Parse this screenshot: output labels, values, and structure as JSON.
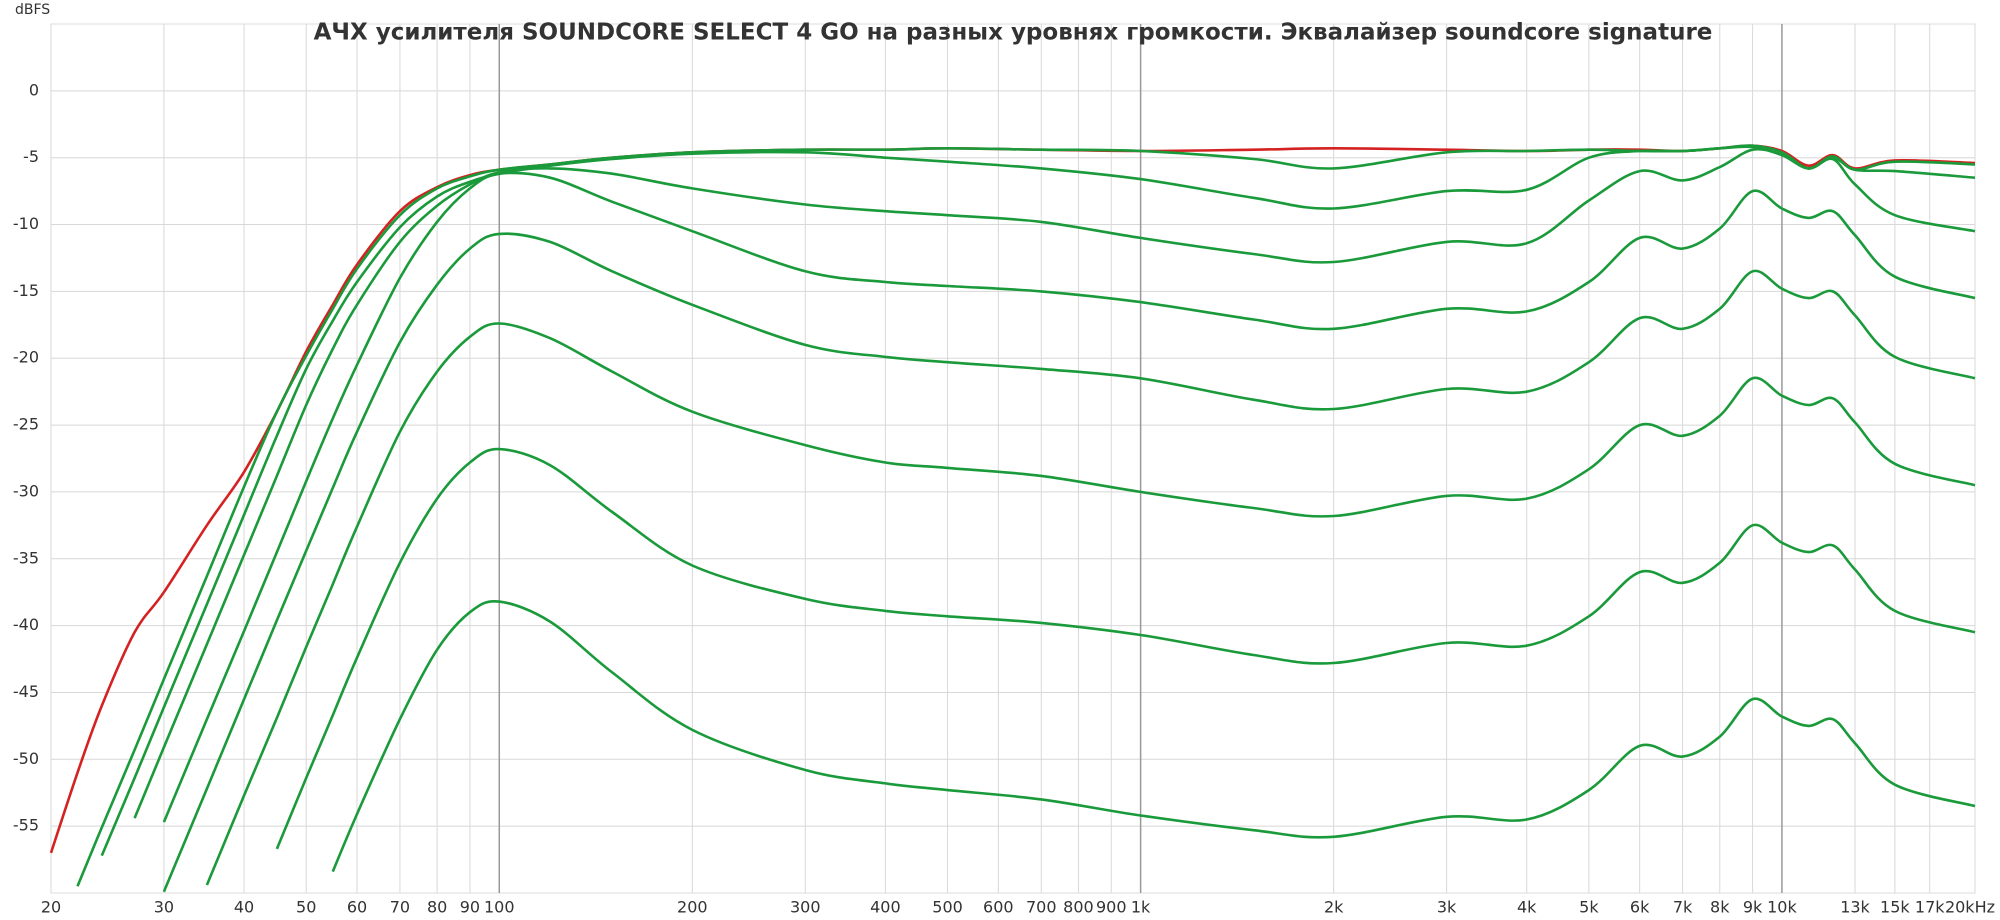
{
  "chart_data": {
    "type": "line",
    "title": "АЧХ усилителя SOUNDCORE SELECT 4 GO на разных уровнях громкости. Эквалайзер soundcore signature",
    "y_label": "dBFS",
    "xscale": "log",
    "grid": true,
    "xlim": [
      20,
      20000
    ],
    "ylim": [
      -60,
      5
    ],
    "xticks": [
      20,
      30,
      40,
      50,
      60,
      70,
      80,
      90,
      100,
      200,
      300,
      400,
      500,
      600,
      700,
      800,
      900,
      {
        "value": 1000,
        "label": "1k"
      },
      {
        "value": 2000,
        "label": "2k"
      },
      {
        "value": 3000,
        "label": "3k"
      },
      {
        "value": 4000,
        "label": "4k"
      },
      {
        "value": 5000,
        "label": "5k"
      },
      {
        "value": 6000,
        "label": "6k"
      },
      {
        "value": 7000,
        "label": "7k"
      },
      {
        "value": 8000,
        "label": "8k"
      },
      {
        "value": 9000,
        "label": "9k"
      },
      {
        "value": 10000,
        "label": "10k"
      },
      {
        "value": 13000,
        "label": "13k"
      },
      {
        "value": 15000,
        "label": "15k"
      },
      {
        "value": 17000,
        "label": "17k"
      },
      {
        "value": 20000,
        "label": "20kHz"
      }
    ],
    "yticks": [
      0,
      -5,
      -10,
      -15,
      -20,
      -25,
      -30,
      -35,
      -40,
      -45,
      -50,
      -55
    ],
    "x": [
      20,
      22,
      24,
      27,
      30,
      35,
      40,
      45,
      50,
      55,
      60,
      70,
      80,
      90,
      100,
      120,
      150,
      200,
      300,
      400,
      500,
      700,
      1000,
      1500,
      2000,
      3000,
      4000,
      5000,
      6000,
      7000,
      8000,
      9000,
      10000,
      11000,
      12000,
      13000,
      15000,
      20000
    ],
    "series": [
      {
        "color": "#d42222",
        "values": [
          -57,
          -51,
          -46,
          -40.5,
          -37.5,
          -32.5,
          -28.5,
          -24,
          -19.5,
          -16,
          -13,
          -9,
          -7.2,
          -6.3,
          -5.9,
          -5.5,
          -5,
          -4.6,
          -4.4,
          -4.4,
          -4.3,
          -4.4,
          -4.5,
          -4.4,
          -4.3,
          -4.4,
          -4.5,
          -4.4,
          -4.4,
          -4.5,
          -4.3,
          -4.1,
          -4.5,
          -5.6,
          -4.8,
          -5.8,
          -5.2,
          -5.4
        ]
      },
      {
        "color": "#1a9a3a",
        "values": [
          null,
          -59.5,
          -55.1,
          -49.3,
          -44,
          -36.3,
          -29.6,
          -24,
          -19.8,
          -16.3,
          -13.3,
          -9.3,
          -7.3,
          -6.4,
          -5.9,
          -5.5,
          -5,
          -4.6,
          -4.4,
          -4.4,
          -4.3,
          -4.4,
          -4.5,
          -5.1,
          -5.8,
          -4.6,
          -4.5,
          -4.4,
          -4.5,
          -4.5,
          -4.3,
          -4.1,
          -4.6,
          -5.8,
          -4.9,
          -5.9,
          -5.3,
          -5.5
        ]
      },
      {
        "color": "#1a9a3a",
        "values": [
          null,
          null,
          -57.2,
          -51.4,
          -46.1,
          -38.4,
          -31.7,
          -25.8,
          -20.8,
          -17.2,
          -14.3,
          -10.2,
          -7.9,
          -6.8,
          -6.2,
          -5.6,
          -5.1,
          -4.7,
          -4.6,
          -5,
          -5.3,
          -5.8,
          -6.6,
          -8,
          -8.8,
          -7.5,
          -7.4,
          -5,
          -4.5,
          -4.5,
          -4.3,
          -4.2,
          -4.8,
          -5.8,
          -5,
          -5.9,
          -6,
          -6.5
        ]
      },
      {
        "color": "#1a9a3a",
        "values": [
          null,
          null,
          null,
          -54.4,
          -49.1,
          -41.4,
          -34.7,
          -28.8,
          -23.5,
          -19.3,
          -16,
          -11.3,
          -8.6,
          -7,
          -6.1,
          -5.8,
          -6.2,
          -7.3,
          -8.5,
          -9,
          -9.3,
          -9.8,
          -11,
          -12.2,
          -12.8,
          -11.3,
          -11.4,
          -8.2,
          -6,
          -6.7,
          -5.7,
          -4.4,
          -4.8,
          -5.8,
          -5.1,
          -7,
          -9.3,
          -10.5
        ]
      },
      {
        "color": "#1a9a3a",
        "values": [
          null,
          null,
          null,
          null,
          -54.7,
          -47,
          -40.4,
          -34.5,
          -29.2,
          -24.5,
          -20.5,
          -14,
          -9.8,
          -7.3,
          -6.2,
          -6.5,
          -8.3,
          -10.5,
          -13.5,
          -14.3,
          -14.6,
          -15,
          -15.8,
          -17.1,
          -17.8,
          -16.3,
          -16.5,
          -14.3,
          -11,
          -11.8,
          -10.3,
          -7.5,
          -8.8,
          -9.5,
          -9,
          -10.8,
          -13.9,
          -15.5
        ]
      },
      {
        "color": "#1a9a3a",
        "values": [
          null,
          null,
          null,
          null,
          -59.9,
          -52.2,
          -45.5,
          -39.6,
          -34.4,
          -29.7,
          -25.5,
          -18.8,
          -14.5,
          -11.8,
          -10.7,
          -11.3,
          -13.5,
          -16,
          -19,
          -19.9,
          -20.3,
          -20.8,
          -21.5,
          -23.1,
          -23.8,
          -22.3,
          -22.5,
          -20.3,
          -17,
          -17.8,
          -16.3,
          -13.5,
          -14.8,
          -15.5,
          -15,
          -16.8,
          -19.9,
          -21.5
        ]
      },
      {
        "color": "#1a9a3a",
        "values": [
          null,
          null,
          null,
          null,
          null,
          -59.4,
          -52.7,
          -46.9,
          -41.6,
          -36.9,
          -32.6,
          -25.5,
          -21,
          -18.4,
          -17.4,
          -18.5,
          -21,
          -24,
          -26.5,
          -27.8,
          -28.2,
          -28.8,
          -30,
          -31.2,
          -31.8,
          -30.3,
          -30.5,
          -28.3,
          -25,
          -25.8,
          -24.3,
          -21.5,
          -22.8,
          -23.5,
          -23,
          -24.8,
          -27.9,
          -29.5
        ]
      },
      {
        "color": "#1a9a3a",
        "values": [
          null,
          null,
          null,
          null,
          null,
          null,
          null,
          -56.7,
          -51.4,
          -46.7,
          -42.4,
          -35.3,
          -30.5,
          -27.8,
          -26.8,
          -28,
          -31.5,
          -35.5,
          -38,
          -38.9,
          -39.3,
          -39.8,
          -40.7,
          -42.2,
          -42.8,
          -41.3,
          -41.5,
          -39.3,
          -36,
          -36.8,
          -35.3,
          -32.5,
          -33.8,
          -34.5,
          -34,
          -35.8,
          -38.9,
          -40.5
        ]
      },
      {
        "color": "#1a9a3a",
        "values": [
          null,
          null,
          null,
          null,
          null,
          null,
          null,
          null,
          null,
          -58.4,
          -54.1,
          -47,
          -41.8,
          -39,
          -38.2,
          -39.7,
          -43.5,
          -47.8,
          -50.8,
          -51.8,
          -52.3,
          -53,
          -54.2,
          -55.3,
          -55.8,
          -54.3,
          -54.5,
          -52.3,
          -49,
          -49.8,
          -48.3,
          -45.5,
          -46.8,
          -47.5,
          -47,
          -48.8,
          -51.9,
          -53.5
        ]
      }
    ]
  }
}
